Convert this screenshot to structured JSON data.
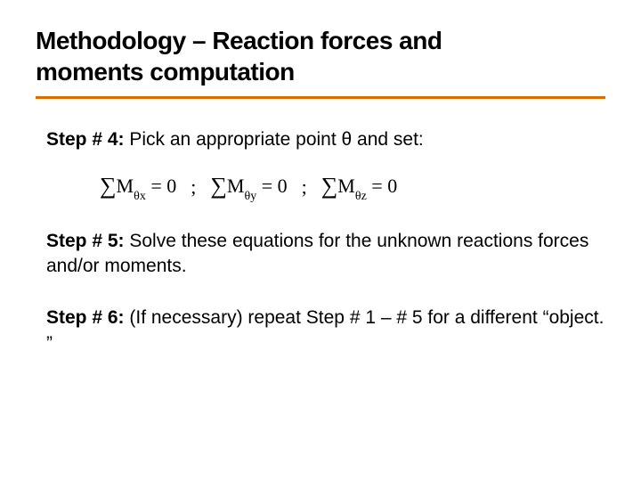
{
  "title_line1": "Methodology – Reaction forces and",
  "title_line2": "moments computation",
  "rule_color": "#d96c00",
  "step4": {
    "label": "Step # 4:",
    "text": " Pick an appropriate point θ and set:"
  },
  "equations": {
    "sigma": "∑",
    "M": "M",
    "sub1": "θx",
    "sub2": "θy",
    "sub3": "θz",
    "eq0": " = 0",
    "sep": ";"
  },
  "step5": {
    "label": "Step # 5:",
    "text": " Solve these equations for the unknown reactions forces and/or moments."
  },
  "step6": {
    "label": "Step # 6:",
    "text": " (If necessary) repeat Step # 1 –  # 5 for a different “object. ”"
  }
}
